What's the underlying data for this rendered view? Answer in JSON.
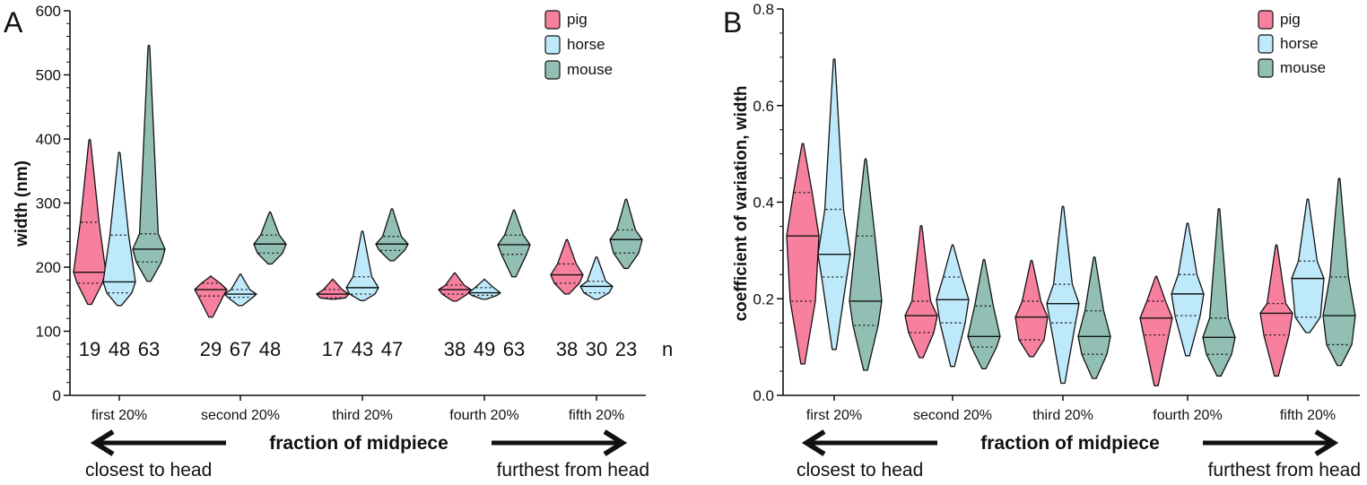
{
  "colors": {
    "pig": "#f7809f",
    "horse": "#bde9fb",
    "mouse": "#92bfb3",
    "axis": "#111111"
  },
  "chart_data": [
    {
      "type": "violin",
      "panel": "A",
      "ylabel": "width (nm)",
      "xlabel": "fraction of midpiece",
      "direction_left": "closest to head",
      "direction_right": "furthest from head",
      "ylim": [
        0,
        600
      ],
      "yticks": [
        0,
        100,
        200,
        300,
        400,
        500,
        600
      ],
      "ytick_labels": [
        "0",
        "100",
        "200",
        "300",
        "400",
        "500",
        "600"
      ],
      "categories": [
        "first 20%",
        "second 20%",
        "third 20%",
        "fourth 20%",
        "fifth 20%"
      ],
      "legend": [
        "pig",
        "horse",
        "mouse"
      ],
      "legend_position": "top-right",
      "n_marker": "n",
      "n_values": [
        [
          "19",
          "48",
          "63"
        ],
        [
          "29",
          "67",
          "48"
        ],
        [
          "17",
          "43",
          "47"
        ],
        [
          "38",
          "49",
          "63"
        ],
        [
          "38",
          "30",
          "23"
        ]
      ],
      "series": [
        {
          "name": "pig",
          "groups": [
            {
              "min": 142,
              "q1": 175,
              "median": 192,
              "q3": 270,
              "max": 398
            },
            {
              "min": 122,
              "q1": 155,
              "median": 165,
              "q3": 175,
              "max": 185
            },
            {
              "min": 150,
              "q1": 152,
              "median": 158,
              "q3": 165,
              "max": 180
            },
            {
              "min": 147,
              "q1": 158,
              "median": 165,
              "q3": 172,
              "max": 190
            },
            {
              "min": 158,
              "q1": 175,
              "median": 188,
              "q3": 205,
              "max": 242
            }
          ]
        },
        {
          "name": "horse",
          "groups": [
            {
              "min": 140,
              "q1": 160,
              "median": 177,
              "q3": 250,
              "max": 378
            },
            {
              "min": 140,
              "q1": 153,
              "median": 158,
              "q3": 165,
              "max": 188
            },
            {
              "min": 148,
              "q1": 158,
              "median": 168,
              "q3": 185,
              "max": 255
            },
            {
              "min": 150,
              "q1": 156,
              "median": 160,
              "q3": 168,
              "max": 180
            },
            {
              "min": 150,
              "q1": 160,
              "median": 170,
              "q3": 178,
              "max": 215
            }
          ]
        },
        {
          "name": "mouse",
          "groups": [
            {
              "min": 178,
              "q1": 208,
              "median": 228,
              "q3": 252,
              "max": 545
            },
            {
              "min": 205,
              "q1": 222,
              "median": 236,
              "q3": 250,
              "max": 285
            },
            {
              "min": 210,
              "q1": 226,
              "median": 236,
              "q3": 248,
              "max": 290
            },
            {
              "min": 185,
              "q1": 220,
              "median": 235,
              "q3": 250,
              "max": 288
            },
            {
              "min": 198,
              "q1": 222,
              "median": 243,
              "q3": 258,
              "max": 305
            }
          ]
        }
      ]
    },
    {
      "type": "violin",
      "panel": "B",
      "ylabel": "coefficient of variation, width",
      "xlabel": "fraction of midpiece",
      "direction_left": "closest to head",
      "direction_right": "furthest from head",
      "ylim": [
        0,
        0.8
      ],
      "yticks": [
        0,
        0.2,
        0.4,
        0.6,
        0.8
      ],
      "ytick_labels": [
        "0.0",
        "0.2",
        "0.4",
        "0.6",
        "0.8"
      ],
      "categories": [
        "first 20%",
        "second 20%",
        "third 20%",
        "fourth 20%",
        "fifth 20%"
      ],
      "legend": [
        "pig",
        "horse",
        "mouse"
      ],
      "legend_position": "top-right",
      "series": [
        {
          "name": "pig",
          "groups": [
            {
              "min": 0.065,
              "q1": 0.195,
              "median": 0.33,
              "q3": 0.42,
              "max": 0.52
            },
            {
              "min": 0.078,
              "q1": 0.13,
              "median": 0.165,
              "q3": 0.195,
              "max": 0.35
            },
            {
              "min": 0.08,
              "q1": 0.115,
              "median": 0.162,
              "q3": 0.195,
              "max": 0.278
            },
            {
              "min": 0.02,
              "q1": 0.125,
              "median": 0.16,
              "q3": 0.195,
              "max": 0.245
            },
            {
              "min": 0.04,
              "q1": 0.125,
              "median": 0.17,
              "q3": 0.19,
              "max": 0.31
            }
          ]
        },
        {
          "name": "horse",
          "groups": [
            {
              "min": 0.095,
              "q1": 0.245,
              "median": 0.292,
              "q3": 0.385,
              "max": 0.695
            },
            {
              "min": 0.06,
              "q1": 0.15,
              "median": 0.198,
              "q3": 0.245,
              "max": 0.31
            },
            {
              "min": 0.025,
              "q1": 0.15,
              "median": 0.19,
              "q3": 0.23,
              "max": 0.39
            },
            {
              "min": 0.082,
              "q1": 0.165,
              "median": 0.21,
              "q3": 0.25,
              "max": 0.355
            },
            {
              "min": 0.13,
              "q1": 0.162,
              "median": 0.242,
              "q3": 0.278,
              "max": 0.405
            }
          ]
        },
        {
          "name": "mouse",
          "groups": [
            {
              "min": 0.052,
              "q1": 0.145,
              "median": 0.195,
              "q3": 0.33,
              "max": 0.488
            },
            {
              "min": 0.055,
              "q1": 0.1,
              "median": 0.122,
              "q3": 0.185,
              "max": 0.28
            },
            {
              "min": 0.035,
              "q1": 0.085,
              "median": 0.122,
              "q3": 0.175,
              "max": 0.285
            },
            {
              "min": 0.04,
              "q1": 0.085,
              "median": 0.12,
              "q3": 0.16,
              "max": 0.385
            },
            {
              "min": 0.062,
              "q1": 0.105,
              "median": 0.165,
              "q3": 0.245,
              "max": 0.448
            }
          ]
        }
      ]
    }
  ]
}
